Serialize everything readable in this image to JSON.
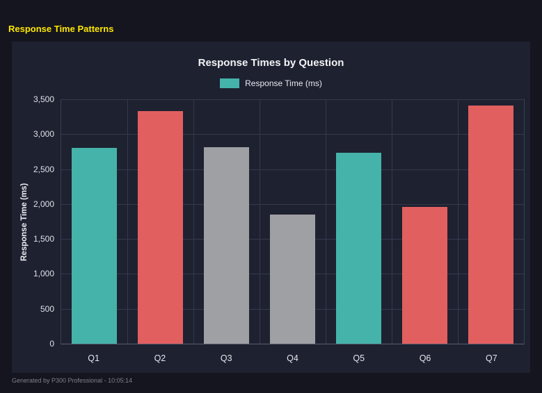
{
  "page": {
    "title": "Response Time Patterns",
    "footer": "Generated by P300 Professional - 10:05:14"
  },
  "chart_data": {
    "type": "bar",
    "title": "Response Times by Question",
    "legend": [
      {
        "label": "Response Time (ms)",
        "color": "#45b3aa"
      }
    ],
    "legend_position": "top",
    "categories": [
      "Q1",
      "Q2",
      "Q3",
      "Q4",
      "Q5",
      "Q6",
      "Q7"
    ],
    "values": [
      2800,
      3330,
      2810,
      1850,
      2730,
      1960,
      3410
    ],
    "bar_colors": [
      "#45b3aa",
      "#e25f5f",
      "#9fa0a4",
      "#9fa0a4",
      "#45b3aa",
      "#e25f5f",
      "#e25f5f"
    ],
    "xlabel": "",
    "ylabel": "Response Time (ms)",
    "ylim": [
      0,
      3500
    ],
    "yticks": [
      0,
      500,
      1000,
      1500,
      2000,
      2500,
      3000,
      3500
    ],
    "grid": true
  },
  "colors": {
    "background": "#14151e",
    "panel": "#1e2130",
    "title_accent": "#ffe600",
    "teal": "#45b3aa",
    "red": "#e25f5f",
    "gray": "#9fa0a4"
  }
}
